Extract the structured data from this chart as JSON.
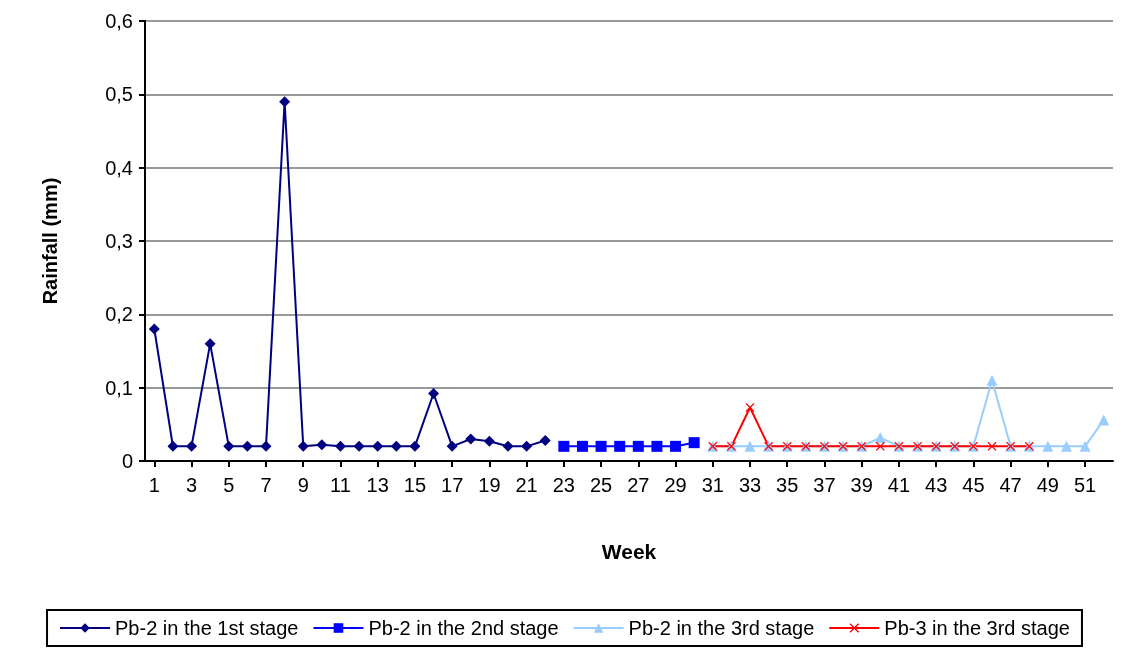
{
  "chart_data": {
    "type": "line",
    "xlabel": "Week",
    "ylabel": "Rainfall (mm)",
    "xlim": [
      0.5,
      52.5
    ],
    "xticks": [
      1,
      3,
      5,
      7,
      9,
      11,
      13,
      15,
      17,
      19,
      21,
      23,
      25,
      27,
      29,
      31,
      33,
      35,
      37,
      39,
      41,
      43,
      45,
      47,
      49,
      51
    ],
    "ylim": [
      0,
      0.6
    ],
    "yticks": [
      {
        "value": 0,
        "label": "0"
      },
      {
        "value": 0.1,
        "label": "0,1"
      },
      {
        "value": 0.2,
        "label": "0,2"
      },
      {
        "value": 0.3,
        "label": "0,3"
      },
      {
        "value": 0.4,
        "label": "0,4"
      },
      {
        "value": 0.5,
        "label": "0,5"
      },
      {
        "value": 0.6,
        "label": "0,6"
      }
    ],
    "grid": "y",
    "legend": "bottom",
    "series": [
      {
        "name": "Pb-2 in the 1st stage",
        "color": "#000080",
        "marker": "diamond",
        "x": [
          1,
          2,
          3,
          4,
          5,
          6,
          7,
          8,
          9,
          10,
          11,
          12,
          13,
          14,
          15,
          16,
          17,
          18,
          19,
          20,
          21,
          22
        ],
        "values": [
          0.18,
          0.02,
          0.02,
          0.16,
          0.02,
          0.02,
          0.02,
          0.49,
          0.02,
          0.022,
          0.02,
          0.02,
          0.02,
          0.02,
          0.02,
          0.092,
          0.02,
          0.03,
          0.027,
          0.02,
          0.02,
          0.028
        ]
      },
      {
        "name": "Pb-2 in the 2nd stage",
        "color": "#0000ff",
        "marker": "square",
        "x": [
          23,
          24,
          25,
          26,
          27,
          28,
          29,
          30
        ],
        "values": [
          0.02,
          0.02,
          0.02,
          0.02,
          0.02,
          0.02,
          0.02,
          0.025
        ]
      },
      {
        "name": "Pb-2 in the 3rd stage",
        "color": "#99ccff",
        "marker": "triangle",
        "x": [
          31,
          32,
          33,
          34,
          35,
          36,
          37,
          38,
          39,
          40,
          41,
          42,
          43,
          44,
          45,
          46,
          47,
          48,
          49,
          50,
          51,
          52
        ],
        "values": [
          0.02,
          0.02,
          0.02,
          0.02,
          0.02,
          0.02,
          0.02,
          0.02,
          0.02,
          0.032,
          0.02,
          0.02,
          0.02,
          0.02,
          0.02,
          0.11,
          0.02,
          0.02,
          0.02,
          0.02,
          0.02,
          0.056
        ]
      },
      {
        "name": "Pb-3 in the 3rd stage",
        "color": "#ff0000",
        "marker": "cross",
        "x": [
          31,
          32,
          33,
          34,
          35,
          36,
          37,
          38,
          39,
          40,
          41,
          42,
          43,
          44,
          45,
          46,
          47,
          48
        ],
        "values": [
          0.02,
          0.02,
          0.073,
          0.02,
          0.02,
          0.02,
          0.02,
          0.02,
          0.02,
          0.02,
          0.02,
          0.02,
          0.02,
          0.02,
          0.02,
          0.02,
          0.02,
          0.02
        ]
      }
    ]
  }
}
